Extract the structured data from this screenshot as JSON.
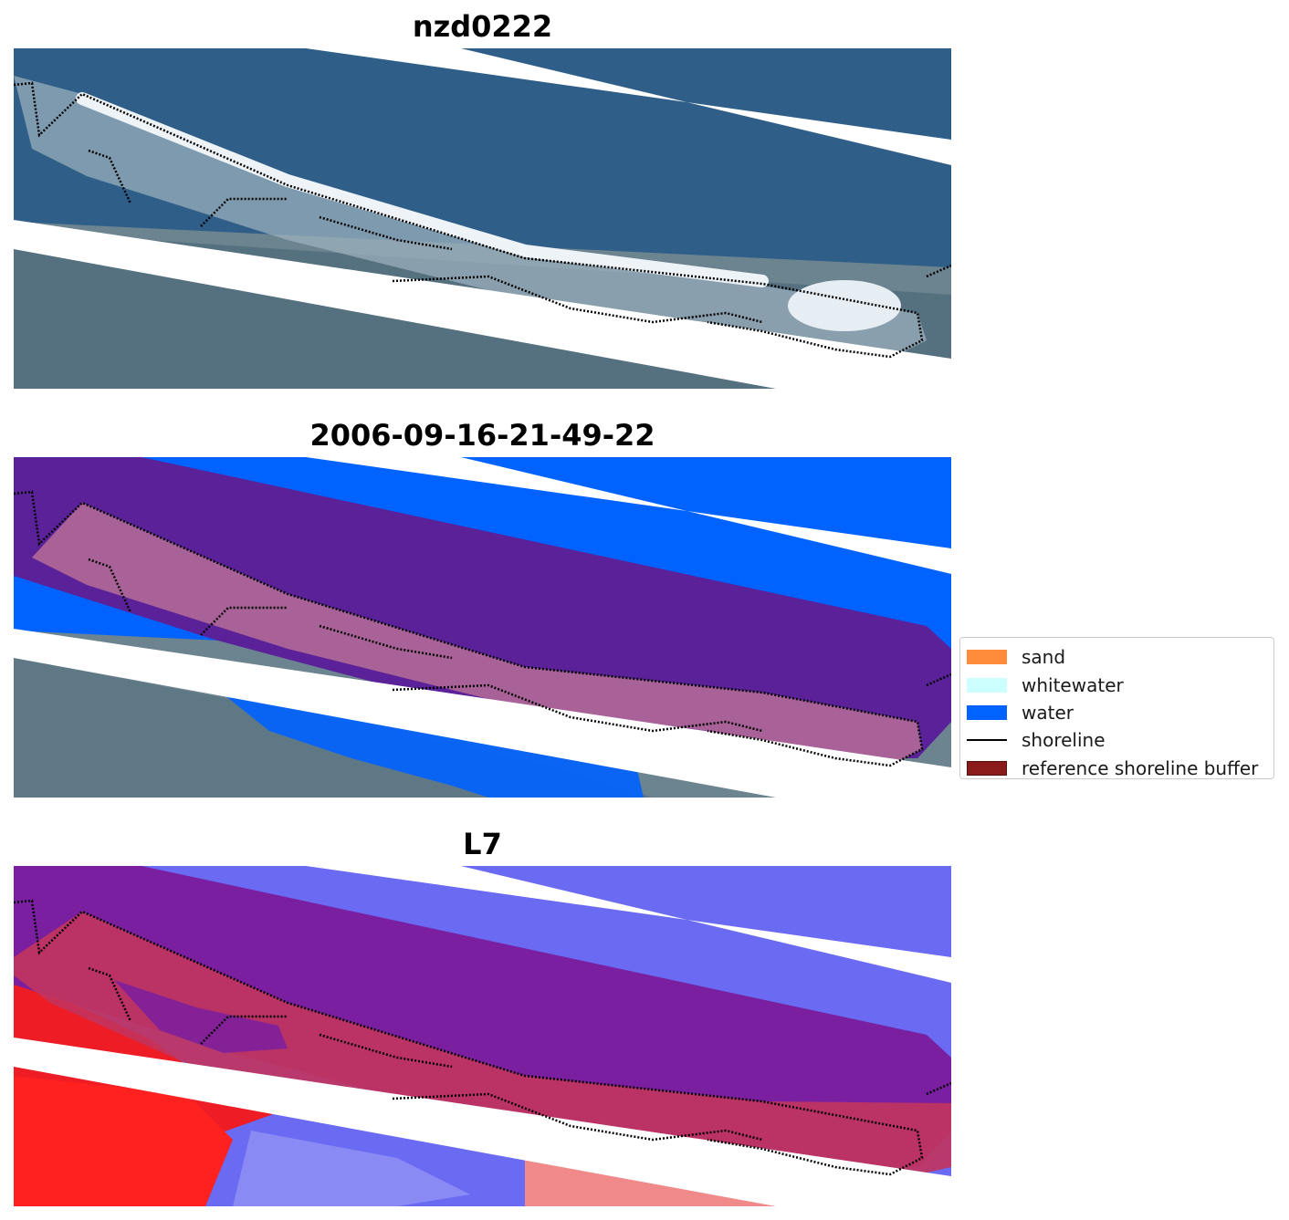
{
  "panels": [
    {
      "title": "nzd0222",
      "kind": "rgb-image"
    },
    {
      "title": "2006-09-16-21-49-22",
      "kind": "classified-image"
    },
    {
      "title": "L7",
      "kind": "index-image"
    }
  ],
  "legend": {
    "items": [
      {
        "label": "sand",
        "type": "patch",
        "color": "#ff8c3a"
      },
      {
        "label": "whitewater",
        "type": "patch",
        "color": "#ccffff"
      },
      {
        "label": "water",
        "type": "patch",
        "color": "#0062ff"
      },
      {
        "label": "shoreline",
        "type": "line",
        "color": "#000000"
      },
      {
        "label": "reference shoreline buffer",
        "type": "patch",
        "color": "#8b1a1a",
        "edge": "#5a0f0f"
      }
    ]
  },
  "colors": {
    "sea": "#2f5f88",
    "land": "#6c8390",
    "beach": "#e7eef3",
    "water_class": "#0062ff",
    "buffer": "#5a2199",
    "sand_overlay": "#b76d98",
    "index_blue": "#6a6af2",
    "index_red": "#ee1c24",
    "index_purple": "#7a1fa0",
    "index_beach": "#c2345e",
    "stripe": "#ffffff"
  }
}
